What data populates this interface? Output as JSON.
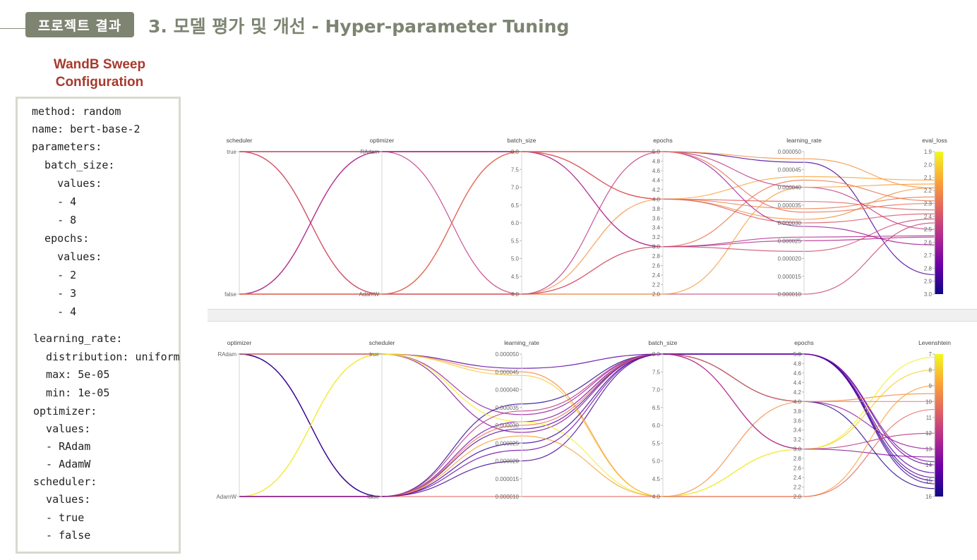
{
  "header": {
    "badge": "프로젝트 결과",
    "title": "3. 모델 평가 및 개선 - Hyper-parameter Tuning"
  },
  "sweep": {
    "title_line1": "WandB Sweep",
    "title_line2": "Configuration",
    "lines": [
      "method: random",
      "name: bert-base-2",
      "parameters:",
      "  batch_size:",
      "    values:",
      "    - 4",
      "    - 8",
      "  epochs:",
      "    values:",
      "    - 2",
      "    - 3",
      "    - 4",
      "learning_rate:",
      "  distribution: uniform",
      "  max: 5e-05",
      "  min: 1e-05",
      "optimizer:",
      "  values:",
      "  - RAdam",
      "  - AdamW",
      "scheduler:",
      "  values:",
      "  - true",
      "  - false"
    ]
  },
  "colors": {
    "header_badge": "#7d8471",
    "sweep_title": "#a73a2f",
    "colormap": [
      "#0d0887",
      "#6a00a8",
      "#b12a90",
      "#e16462",
      "#fca636",
      "#f0f921"
    ]
  },
  "chart_data": [
    {
      "type": "parallel_coordinates",
      "axes": [
        {
          "name": "scheduler",
          "kind": "categorical",
          "categories": [
            "true",
            "false"
          ],
          "tick_labels": [
            "true",
            "false"
          ]
        },
        {
          "name": "optimizer",
          "kind": "categorical",
          "categories": [
            "RAdam",
            "AdamW"
          ],
          "tick_labels": [
            "RAdam",
            "AdamW"
          ]
        },
        {
          "name": "batch_size",
          "kind": "numeric",
          "range": [
            4,
            8
          ],
          "tick_labels": [
            "8.0",
            "7.5",
            "7.0",
            "6.5",
            "6.0",
            "5.5",
            "5.0",
            "4.5",
            "4.0"
          ]
        },
        {
          "name": "epochs",
          "kind": "numeric",
          "range": [
            2,
            5
          ],
          "tick_labels": [
            "5.0",
            "4.8",
            "4.6",
            "4.4",
            "4.2",
            "4.0",
            "3.8",
            "3.6",
            "3.4",
            "3.2",
            "3.0",
            "2.8",
            "2.6",
            "2.4",
            "2.2",
            "2.0"
          ]
        },
        {
          "name": "learning_rate",
          "kind": "numeric",
          "range": [
            1e-05,
            5e-05
          ],
          "tick_labels": [
            "0.000050",
            "0.000045",
            "0.000040",
            "0.000035",
            "0.000030",
            "0.000025",
            "0.000020",
            "0.000015",
            "0.000010"
          ]
        },
        {
          "name": "eval_loss",
          "kind": "numeric",
          "range": [
            1.9,
            3.0
          ],
          "inverted": true,
          "colorbar": true,
          "tick_labels": [
            "1.9",
            "2.0",
            "2.1",
            "2.2",
            "2.3",
            "2.4",
            "2.5",
            "2.6",
            "2.7",
            "2.8",
            "2.9",
            "3.0"
          ]
        }
      ],
      "runs": [
        [
          true,
          "RAdam",
          8,
          4,
          4.3e-05,
          2.12
        ],
        [
          true,
          "RAdam",
          8,
          3,
          2.5e-05,
          2.56
        ],
        [
          true,
          "RAdam",
          8,
          5,
          4.7e-05,
          2.85
        ],
        [
          true,
          "RAdam",
          8,
          4,
          3.6e-05,
          2.35
        ],
        [
          true,
          "AdamW",
          4,
          4,
          3.1e-05,
          2.18
        ],
        [
          true,
          "AdamW",
          4,
          3,
          4.2e-05,
          2.28
        ],
        [
          true,
          "AdamW",
          8,
          4,
          3.4e-05,
          2.25
        ],
        [
          true,
          "AdamW",
          4,
          2,
          1e-05,
          2.45
        ],
        [
          false,
          "RAdam",
          8,
          5,
          2.9e-05,
          2.62
        ],
        [
          false,
          "RAdam",
          4,
          5,
          4e-05,
          2.5
        ],
        [
          false,
          "RAdam",
          8,
          3,
          2.6e-05,
          2.55
        ],
        [
          false,
          "AdamW",
          8,
          5,
          4.8e-05,
          2.18
        ],
        [
          false,
          "AdamW",
          4,
          2,
          4e-05,
          2.15
        ],
        [
          false,
          "AdamW",
          8,
          4,
          3e-05,
          2.38
        ],
        [
          false,
          "AdamW",
          4,
          3,
          2.2e-05,
          2.42
        ],
        [
          false,
          "AdamW",
          8,
          5,
          3.3e-05,
          2.3
        ]
      ]
    },
    {
      "type": "parallel_coordinates",
      "axes": [
        {
          "name": "optimizer",
          "kind": "categorical",
          "categories": [
            "RAdam",
            "AdamW"
          ],
          "tick_labels": [
            "RAdam",
            "AdamW"
          ]
        },
        {
          "name": "scheduler",
          "kind": "categorical",
          "categories": [
            "true",
            "false"
          ],
          "tick_labels": [
            "true",
            "false"
          ]
        },
        {
          "name": "learning_rate",
          "kind": "numeric",
          "range": [
            1e-05,
            5e-05
          ],
          "tick_labels": [
            "0.000050",
            "0.000045",
            "0.000040",
            "0.000035",
            "0.000030",
            "0.000025",
            "0.000020",
            "0.000015",
            "0.000010"
          ]
        },
        {
          "name": "batch_size",
          "kind": "numeric",
          "range": [
            4,
            8
          ],
          "tick_labels": [
            "8.0",
            "7.5",
            "7.0",
            "6.5",
            "6.0",
            "5.5",
            "5.0",
            "4.5",
            "4.0"
          ]
        },
        {
          "name": "epochs",
          "kind": "numeric",
          "range": [
            2,
            5
          ],
          "tick_labels": [
            "5.0",
            "4.8",
            "4.6",
            "4.4",
            "4.2",
            "4.0",
            "3.8",
            "3.6",
            "3.4",
            "3.2",
            "3.0",
            "2.8",
            "2.6",
            "2.4",
            "2.2",
            "2.0"
          ]
        },
        {
          "name": "Levenshtein",
          "kind": "numeric",
          "range": [
            7,
            16
          ],
          "inverted": true,
          "colorbar": true,
          "tick_labels": [
            "7",
            "8",
            "9",
            "10",
            "11",
            "12",
            "13",
            "14",
            "15",
            "16"
          ]
        }
      ],
      "runs": [
        [
          "RAdam",
          true,
          4.6e-05,
          8,
          5,
          14.5
        ],
        [
          "RAdam",
          true,
          3.3e-05,
          8,
          4,
          13.0
        ],
        [
          "RAdam",
          true,
          2.8e-05,
          8,
          3,
          13.5
        ],
        [
          "RAdam",
          false,
          2e-05,
          8,
          5,
          15.0
        ],
        [
          "RAdam",
          false,
          2.9e-05,
          8,
          5,
          14.8
        ],
        [
          "RAdam",
          false,
          3.1e-05,
          8,
          5,
          13.8
        ],
        [
          "RAdam",
          false,
          3.6e-05,
          8,
          4,
          15.5
        ],
        [
          "RAdam",
          true,
          4.5e-05,
          4,
          4,
          9.5
        ],
        [
          "AdamW",
          true,
          4.4e-05,
          4,
          3,
          8.0
        ],
        [
          "AdamW",
          true,
          3.1e-05,
          4,
          3,
          7.2
        ],
        [
          "AdamW",
          false,
          2.5e-05,
          8,
          5,
          15.2
        ],
        [
          "AdamW",
          false,
          3e-05,
          8,
          4,
          10.0
        ],
        [
          "AdamW",
          false,
          2.7e-05,
          4,
          2,
          9.0
        ],
        [
          "AdamW",
          false,
          1e-05,
          4,
          2,
          10.5
        ],
        [
          "AdamW",
          false,
          3.4e-05,
          8,
          3,
          12.0
        ],
        [
          "AdamW",
          false,
          2.3e-05,
          8,
          5,
          14.0
        ]
      ]
    }
  ]
}
